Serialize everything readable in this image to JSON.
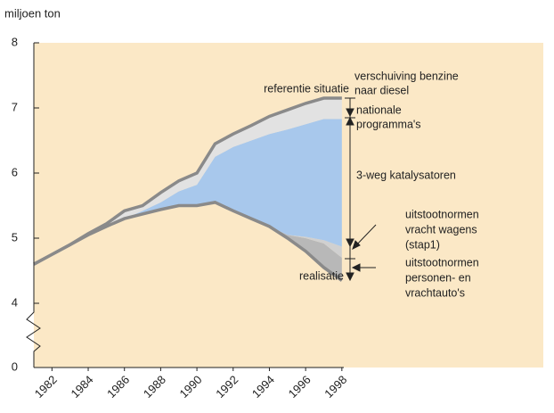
{
  "chart_data": {
    "type": "stacked_area",
    "ylabel": "miljoen ton",
    "x": [
      1981,
      1982,
      1983,
      1984,
      1985,
      1986,
      1987,
      1988,
      1989,
      1990,
      1991,
      1992,
      1993,
      1994,
      1995,
      1996,
      1997,
      1998
    ],
    "xlim": [
      1981,
      1998.5
    ],
    "xticks": [
      1982,
      1984,
      1986,
      1988,
      1990,
      1992,
      1994,
      1996,
      1998
    ],
    "ylim": [
      0,
      8
    ],
    "yticks": [
      0,
      4,
      5,
      6,
      7,
      8
    ],
    "y_break": [
      0,
      4
    ],
    "series": [
      {
        "color": "#ffffff",
        "values": [
          4.6,
          4.75,
          4.9,
          5.05,
          5.18,
          5.3,
          5.37,
          5.44,
          5.5,
          5.5,
          5.55,
          5.42,
          5.3,
          5.18,
          5.0,
          4.8,
          4.55,
          4.35
        ]
      },
      {
        "color": "#b8b8b8",
        "values": [
          0,
          0,
          0,
          0,
          0,
          0,
          0,
          0,
          0,
          0,
          0,
          0,
          0,
          0,
          0.05,
          0.2,
          0.37,
          0.35
        ]
      },
      {
        "color": "#d0d0d0",
        "values": [
          0,
          0,
          0,
          0,
          0,
          0,
          0,
          0,
          0,
          0,
          0,
          0,
          0,
          0,
          0,
          0.02,
          0.05,
          0.17
        ]
      },
      {
        "color": "#a8c8ec",
        "values": [
          0,
          0,
          0,
          0,
          0,
          0,
          0.05,
          0.11,
          0.22,
          0.32,
          0.7,
          0.98,
          1.2,
          1.42,
          1.62,
          1.73,
          1.86,
          1.96
        ]
      },
      {
        "color": "#e2e2e2",
        "values": [
          0,
          0,
          0,
          0.02,
          0.04,
          0.12,
          0.08,
          0.15,
          0.16,
          0.18,
          0.2,
          0.2,
          0.23,
          0.27,
          0.3,
          0.32,
          0.32,
          0.32
        ]
      }
    ],
    "annotations": {
      "referentie": "referentie situatie",
      "realisatie": "realisatie",
      "benzine": [
        "verschuiving benzine",
        "naar diesel"
      ],
      "nationale": [
        "nationale",
        "programma's"
      ],
      "katalysatoren": "3-weg katalysatoren",
      "vracht": [
        "uitstootnormen",
        "vracht wagens",
        "(stap1)"
      ],
      "personen": [
        "uitstootnormen",
        "personen- en",
        "vrachtauto's"
      ]
    }
  }
}
